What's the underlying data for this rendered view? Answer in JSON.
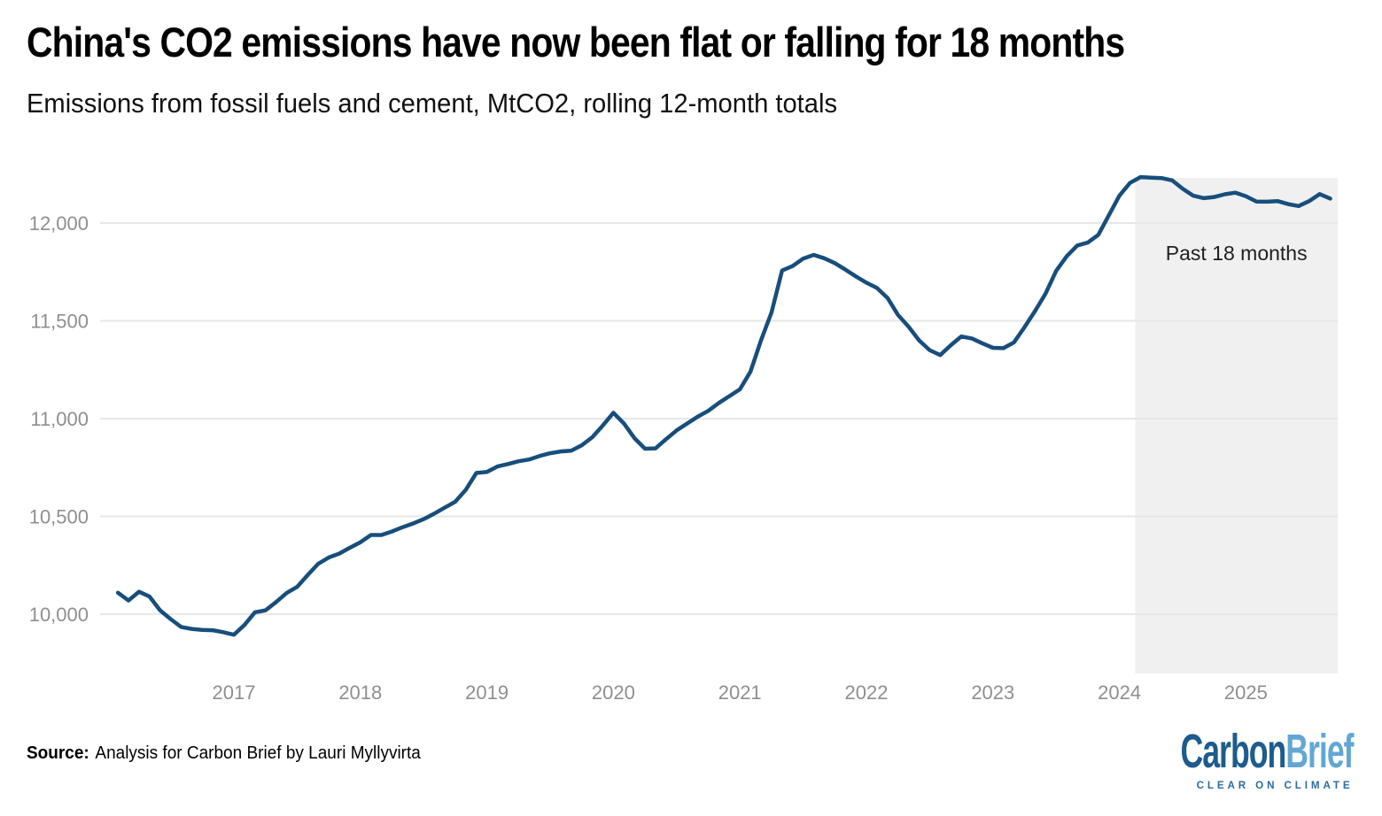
{
  "header": {
    "title": "China's CO2 emissions have now been flat or falling for 18 months",
    "subtitle": "Emissions from fossil fuels and cement, MtCO2, rolling 12-month totals"
  },
  "footer": {
    "source_label": "Source:",
    "source_text": "Analysis for Carbon Brief by Lauri Myllyvirta",
    "logo": {
      "part1": "Carbon",
      "part2": "Brief",
      "tagline": "CLEAR ON CLIMATE"
    }
  },
  "colors": {
    "line": "#174e7c",
    "grid": "#e7e7e7",
    "axis_text": "#8f8f8f",
    "region_fill": "#f0f0f0",
    "annotation_text": "#1f1f1f",
    "logo_dark": "#1d5c8c",
    "logo_light": "#62a7d4"
  },
  "chart_data": {
    "type": "line",
    "title": "China's CO2 emissions have now been flat or falling for 18 months",
    "subtitle": "Emissions from fossil fuels and cement, MtCO2, rolling 12-month totals",
    "unit": "MtCO2",
    "xlabel": "",
    "ylabel": "MtCO2, rolling 12-month totals",
    "ylim": [
      9700,
      12260
    ],
    "grid": "horizontal",
    "legend": "none",
    "y_ticks": [
      12000,
      11500,
      11000,
      10500,
      10000
    ],
    "y_tick_labels": [
      "12,000",
      "11,500",
      "11,000",
      "10,500",
      "10,000"
    ],
    "x_ticks": [
      "2017",
      "2018",
      "2019",
      "2020",
      "2021",
      "2022",
      "2023",
      "2024",
      "2025"
    ],
    "annotation": {
      "text": "Past 18 months",
      "region_start": "2024-03",
      "region_end": "2025-09"
    },
    "series": [
      {
        "name": "China CO2 emissions from fossil fuels and cement (rolling 12-month total, MtCO2)",
        "points": [
          [
            "2016-02",
            10110
          ],
          [
            "2016-03",
            10070
          ],
          [
            "2016-04",
            10115
          ],
          [
            "2016-05",
            10090
          ],
          [
            "2016-06",
            10020
          ],
          [
            "2016-07",
            9975
          ],
          [
            "2016-08",
            9935
          ],
          [
            "2016-09",
            9925
          ],
          [
            "2016-10",
            9920
          ],
          [
            "2016-11",
            9918
          ],
          [
            "2016-12",
            9908
          ],
          [
            "2017-01",
            9895
          ],
          [
            "2017-02",
            9945
          ],
          [
            "2017-03",
            10010
          ],
          [
            "2017-04",
            10020
          ],
          [
            "2017-05",
            10062
          ],
          [
            "2017-06",
            10108
          ],
          [
            "2017-07",
            10140
          ],
          [
            "2017-08",
            10200
          ],
          [
            "2017-09",
            10258
          ],
          [
            "2017-10",
            10290
          ],
          [
            "2017-11",
            10310
          ],
          [
            "2017-12",
            10340
          ],
          [
            "2018-01",
            10368
          ],
          [
            "2018-02",
            10405
          ],
          [
            "2018-03",
            10405
          ],
          [
            "2018-04",
            10423
          ],
          [
            "2018-05",
            10445
          ],
          [
            "2018-06",
            10464
          ],
          [
            "2018-07",
            10486
          ],
          [
            "2018-08",
            10514
          ],
          [
            "2018-09",
            10545
          ],
          [
            "2018-10",
            10575
          ],
          [
            "2018-11",
            10636
          ],
          [
            "2018-12",
            10722
          ],
          [
            "2019-01",
            10727
          ],
          [
            "2019-02",
            10755
          ],
          [
            "2019-03",
            10768
          ],
          [
            "2019-04",
            10782
          ],
          [
            "2019-05",
            10791
          ],
          [
            "2019-06",
            10809
          ],
          [
            "2019-07",
            10823
          ],
          [
            "2019-08",
            10832
          ],
          [
            "2019-09",
            10836
          ],
          [
            "2019-10",
            10864
          ],
          [
            "2019-11",
            10905
          ],
          [
            "2019-12",
            10965
          ],
          [
            "2020-01",
            11030
          ],
          [
            "2020-02",
            10975
          ],
          [
            "2020-03",
            10900
          ],
          [
            "2020-04",
            10846
          ],
          [
            "2020-05",
            10848
          ],
          [
            "2020-06",
            10895
          ],
          [
            "2020-07",
            10940
          ],
          [
            "2020-08",
            10975
          ],
          [
            "2020-09",
            11010
          ],
          [
            "2020-10",
            11040
          ],
          [
            "2020-11",
            11080
          ],
          [
            "2020-12",
            11115
          ],
          [
            "2021-01",
            11150
          ],
          [
            "2021-02",
            11240
          ],
          [
            "2021-03",
            11400
          ],
          [
            "2021-04",
            11543
          ],
          [
            "2021-05",
            11757
          ],
          [
            "2021-06",
            11780
          ],
          [
            "2021-07",
            11818
          ],
          [
            "2021-08",
            11837
          ],
          [
            "2021-09",
            11820
          ],
          [
            "2021-10",
            11795
          ],
          [
            "2021-11",
            11762
          ],
          [
            "2021-12",
            11727
          ],
          [
            "2022-01",
            11695
          ],
          [
            "2022-02",
            11668
          ],
          [
            "2022-03",
            11617
          ],
          [
            "2022-04",
            11530
          ],
          [
            "2022-05",
            11470
          ],
          [
            "2022-06",
            11400
          ],
          [
            "2022-07",
            11350
          ],
          [
            "2022-08",
            11325
          ],
          [
            "2022-09",
            11375
          ],
          [
            "2022-10",
            11420
          ],
          [
            "2022-11",
            11410
          ],
          [
            "2022-12",
            11385
          ],
          [
            "2023-01",
            11362
          ],
          [
            "2023-02",
            11360
          ],
          [
            "2023-03",
            11390
          ],
          [
            "2023-04",
            11468
          ],
          [
            "2023-05",
            11550
          ],
          [
            "2023-06",
            11640
          ],
          [
            "2023-07",
            11755
          ],
          [
            "2023-08",
            11830
          ],
          [
            "2023-09",
            11885
          ],
          [
            "2023-10",
            11900
          ],
          [
            "2023-11",
            11940
          ],
          [
            "2023-12",
            12040
          ],
          [
            "2024-01",
            12140
          ],
          [
            "2024-02",
            12205
          ],
          [
            "2024-03",
            12235
          ],
          [
            "2024-04",
            12232
          ],
          [
            "2024-05",
            12230
          ],
          [
            "2024-06",
            12218
          ],
          [
            "2024-07",
            12175
          ],
          [
            "2024-08",
            12140
          ],
          [
            "2024-09",
            12127
          ],
          [
            "2024-10",
            12133
          ],
          [
            "2024-11",
            12147
          ],
          [
            "2024-12",
            12155
          ],
          [
            "2025-01",
            12137
          ],
          [
            "2025-02",
            12110
          ],
          [
            "2025-03",
            12109
          ],
          [
            "2025-04",
            12112
          ],
          [
            "2025-05",
            12097
          ],
          [
            "2025-06",
            12087
          ],
          [
            "2025-07",
            12112
          ],
          [
            "2025-08",
            12148
          ],
          [
            "2025-09",
            12125
          ]
        ]
      }
    ]
  }
}
